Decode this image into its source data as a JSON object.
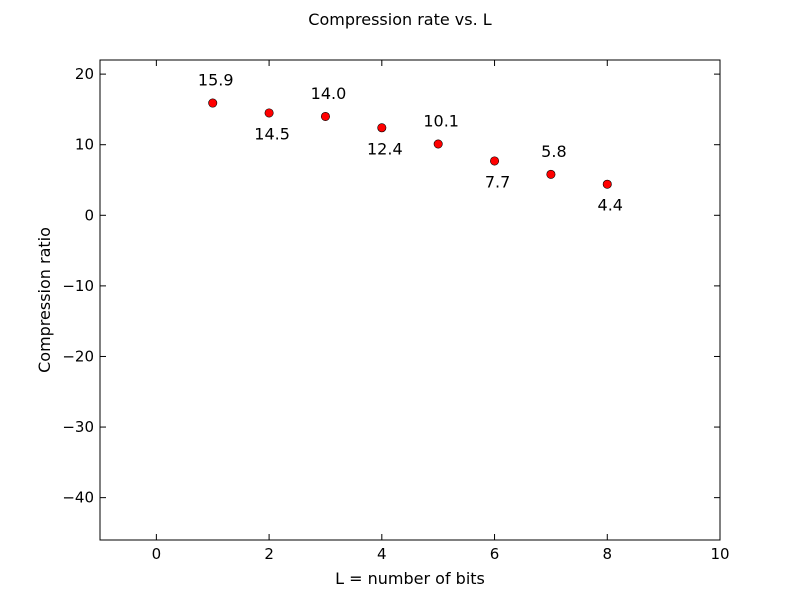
{
  "chart_data": {
    "type": "scatter",
    "title": "Compression rate vs. L",
    "xlabel": "L = number of bits",
    "ylabel": "Compression ratio",
    "xlim": [
      -1,
      10
    ],
    "ylim": [
      -46,
      22
    ],
    "xticks": [
      0,
      2,
      4,
      6,
      8,
      10
    ],
    "yticks": [
      20,
      10,
      0,
      -10,
      -20,
      -30,
      -40
    ],
    "x_tick_labels": [
      "0",
      "2",
      "4",
      "6",
      "8",
      "10"
    ],
    "y_tick_labels": [
      "20",
      "10",
      "0",
      "−10",
      "−20",
      "−30",
      "−40"
    ],
    "grid": false,
    "marker_color": "#ff0000",
    "series": [
      {
        "x": [
          1,
          2,
          3,
          4,
          5,
          6,
          7,
          8
        ],
        "y": [
          15.9,
          14.5,
          14.0,
          12.4,
          10.1,
          7.7,
          5.8,
          4.4
        ],
        "labels": [
          "15.9",
          "14.5",
          "14.0",
          "12.4",
          "10.1",
          "7.7",
          "5.8",
          "4.4"
        ],
        "label_positions": [
          "above",
          "below",
          "above",
          "below",
          "above",
          "below",
          "above",
          "below"
        ]
      }
    ]
  }
}
